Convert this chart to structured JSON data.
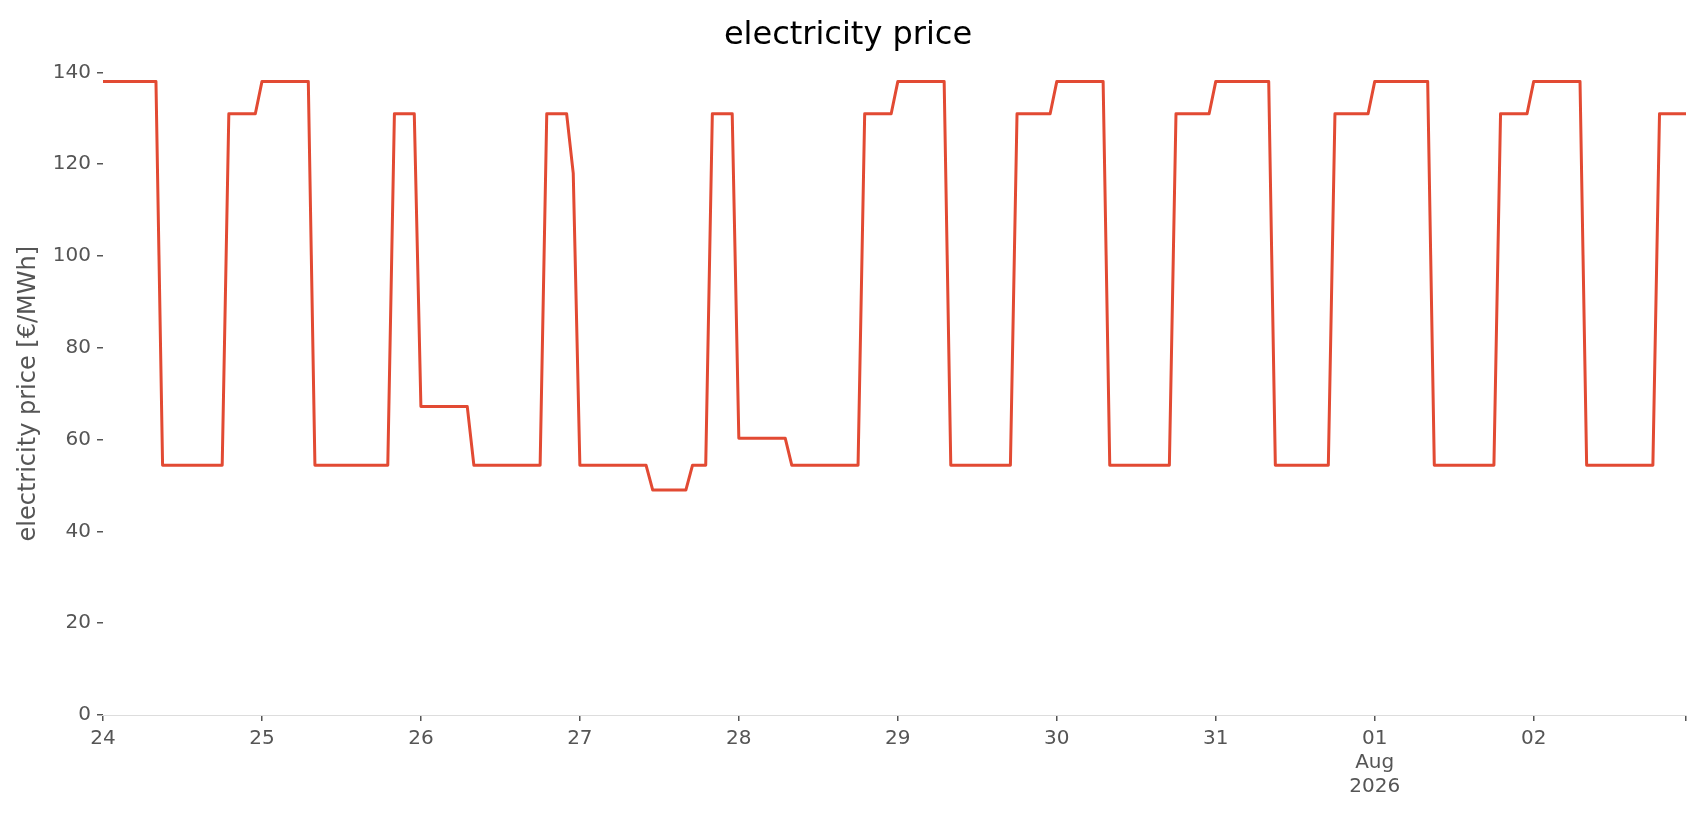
{
  "chart_data": {
    "type": "line",
    "title": "electricity price",
    "ylabel": "electricity price [€/MWh]",
    "x": [
      "2026-07-24T00:00",
      "2026-07-24T08:00",
      "2026-07-24T09:00",
      "2026-07-24T18:00",
      "2026-07-24T19:00",
      "2026-07-24T23:00",
      "2026-07-25T00:00",
      "2026-07-25T07:00",
      "2026-07-25T08:00",
      "2026-07-25T19:00",
      "2026-07-25T20:00",
      "2026-07-25T23:00",
      "2026-07-26T00:00",
      "2026-07-26T07:00",
      "2026-07-26T08:00",
      "2026-07-26T18:00",
      "2026-07-26T19:00",
      "2026-07-26T22:00",
      "2026-07-26T23:00",
      "2026-07-27T00:00",
      "2026-07-27T10:00",
      "2026-07-27T11:00",
      "2026-07-27T16:00",
      "2026-07-27T17:00",
      "2026-07-27T19:00",
      "2026-07-27T20:00",
      "2026-07-27T23:00",
      "2026-07-28T00:00",
      "2026-07-28T07:00",
      "2026-07-28T08:00",
      "2026-07-28T18:00",
      "2026-07-28T19:00",
      "2026-07-28T23:00",
      "2026-07-29T00:00",
      "2026-07-29T07:00",
      "2026-07-29T08:00",
      "2026-07-29T17:00",
      "2026-07-29T18:00",
      "2026-07-29T23:00",
      "2026-07-30T00:00",
      "2026-07-30T07:00",
      "2026-07-30T08:00",
      "2026-07-30T17:00",
      "2026-07-30T18:00",
      "2026-07-30T23:00",
      "2026-07-31T00:00",
      "2026-07-31T08:00",
      "2026-07-31T09:00",
      "2026-07-31T17:00",
      "2026-07-31T18:00",
      "2026-07-31T23:00",
      "2026-08-01T00:00",
      "2026-08-01T08:00",
      "2026-08-01T09:00",
      "2026-08-01T18:00",
      "2026-08-01T19:00",
      "2026-08-01T23:00",
      "2026-08-02T00:00",
      "2026-08-02T07:00",
      "2026-08-02T08:00",
      "2026-08-02T18:00",
      "2026-08-02T19:00",
      "2026-08-02T23:00"
    ],
    "series": [
      {
        "color": "#e24a33",
        "values": [
          138,
          138,
          54.4,
          54.4,
          131,
          131,
          138,
          138,
          54.4,
          54.4,
          131,
          131,
          67.2,
          67.2,
          54.4,
          54.4,
          131,
          131,
          118,
          54.4,
          54.4,
          49,
          49,
          54.4,
          54.4,
          131,
          131,
          60.3,
          60.3,
          54.4,
          54.4,
          131,
          131,
          138,
          138,
          54.4,
          54.4,
          131,
          131,
          138,
          138,
          54.4,
          54.4,
          131,
          131,
          138,
          138,
          54.4,
          54.4,
          131,
          131,
          138,
          138,
          54.4,
          54.4,
          131,
          131,
          138,
          138,
          54.4,
          54.4,
          131,
          131
        ]
      }
    ],
    "xlim": [
      "2026-07-24T00:00",
      "2026-08-02T23:00"
    ],
    "xticks": [
      {
        "value": "2026-07-24T00:00",
        "label": "24"
      },
      {
        "value": "2026-07-25T00:00",
        "label": "25"
      },
      {
        "value": "2026-07-26T00:00",
        "label": "26"
      },
      {
        "value": "2026-07-27T00:00",
        "label": "27"
      },
      {
        "value": "2026-07-28T00:00",
        "label": "28"
      },
      {
        "value": "2026-07-29T00:00",
        "label": "29"
      },
      {
        "value": "2026-07-30T00:00",
        "label": "30"
      },
      {
        "value": "2026-07-31T00:00",
        "label": "31"
      },
      {
        "value": "2026-08-01T00:00",
        "label": "01\nAug\n2026"
      },
      {
        "value": "2026-08-02T00:00",
        "label": "02"
      },
      {
        "value": "2026-08-02T23:00",
        "label": null
      }
    ],
    "ylim": [
      0,
      140
    ],
    "yticks": [
      0,
      20,
      40,
      60,
      80,
      100,
      120,
      140
    ],
    "grid": false,
    "legend": false,
    "marker": "none",
    "line_style": "solid"
  }
}
